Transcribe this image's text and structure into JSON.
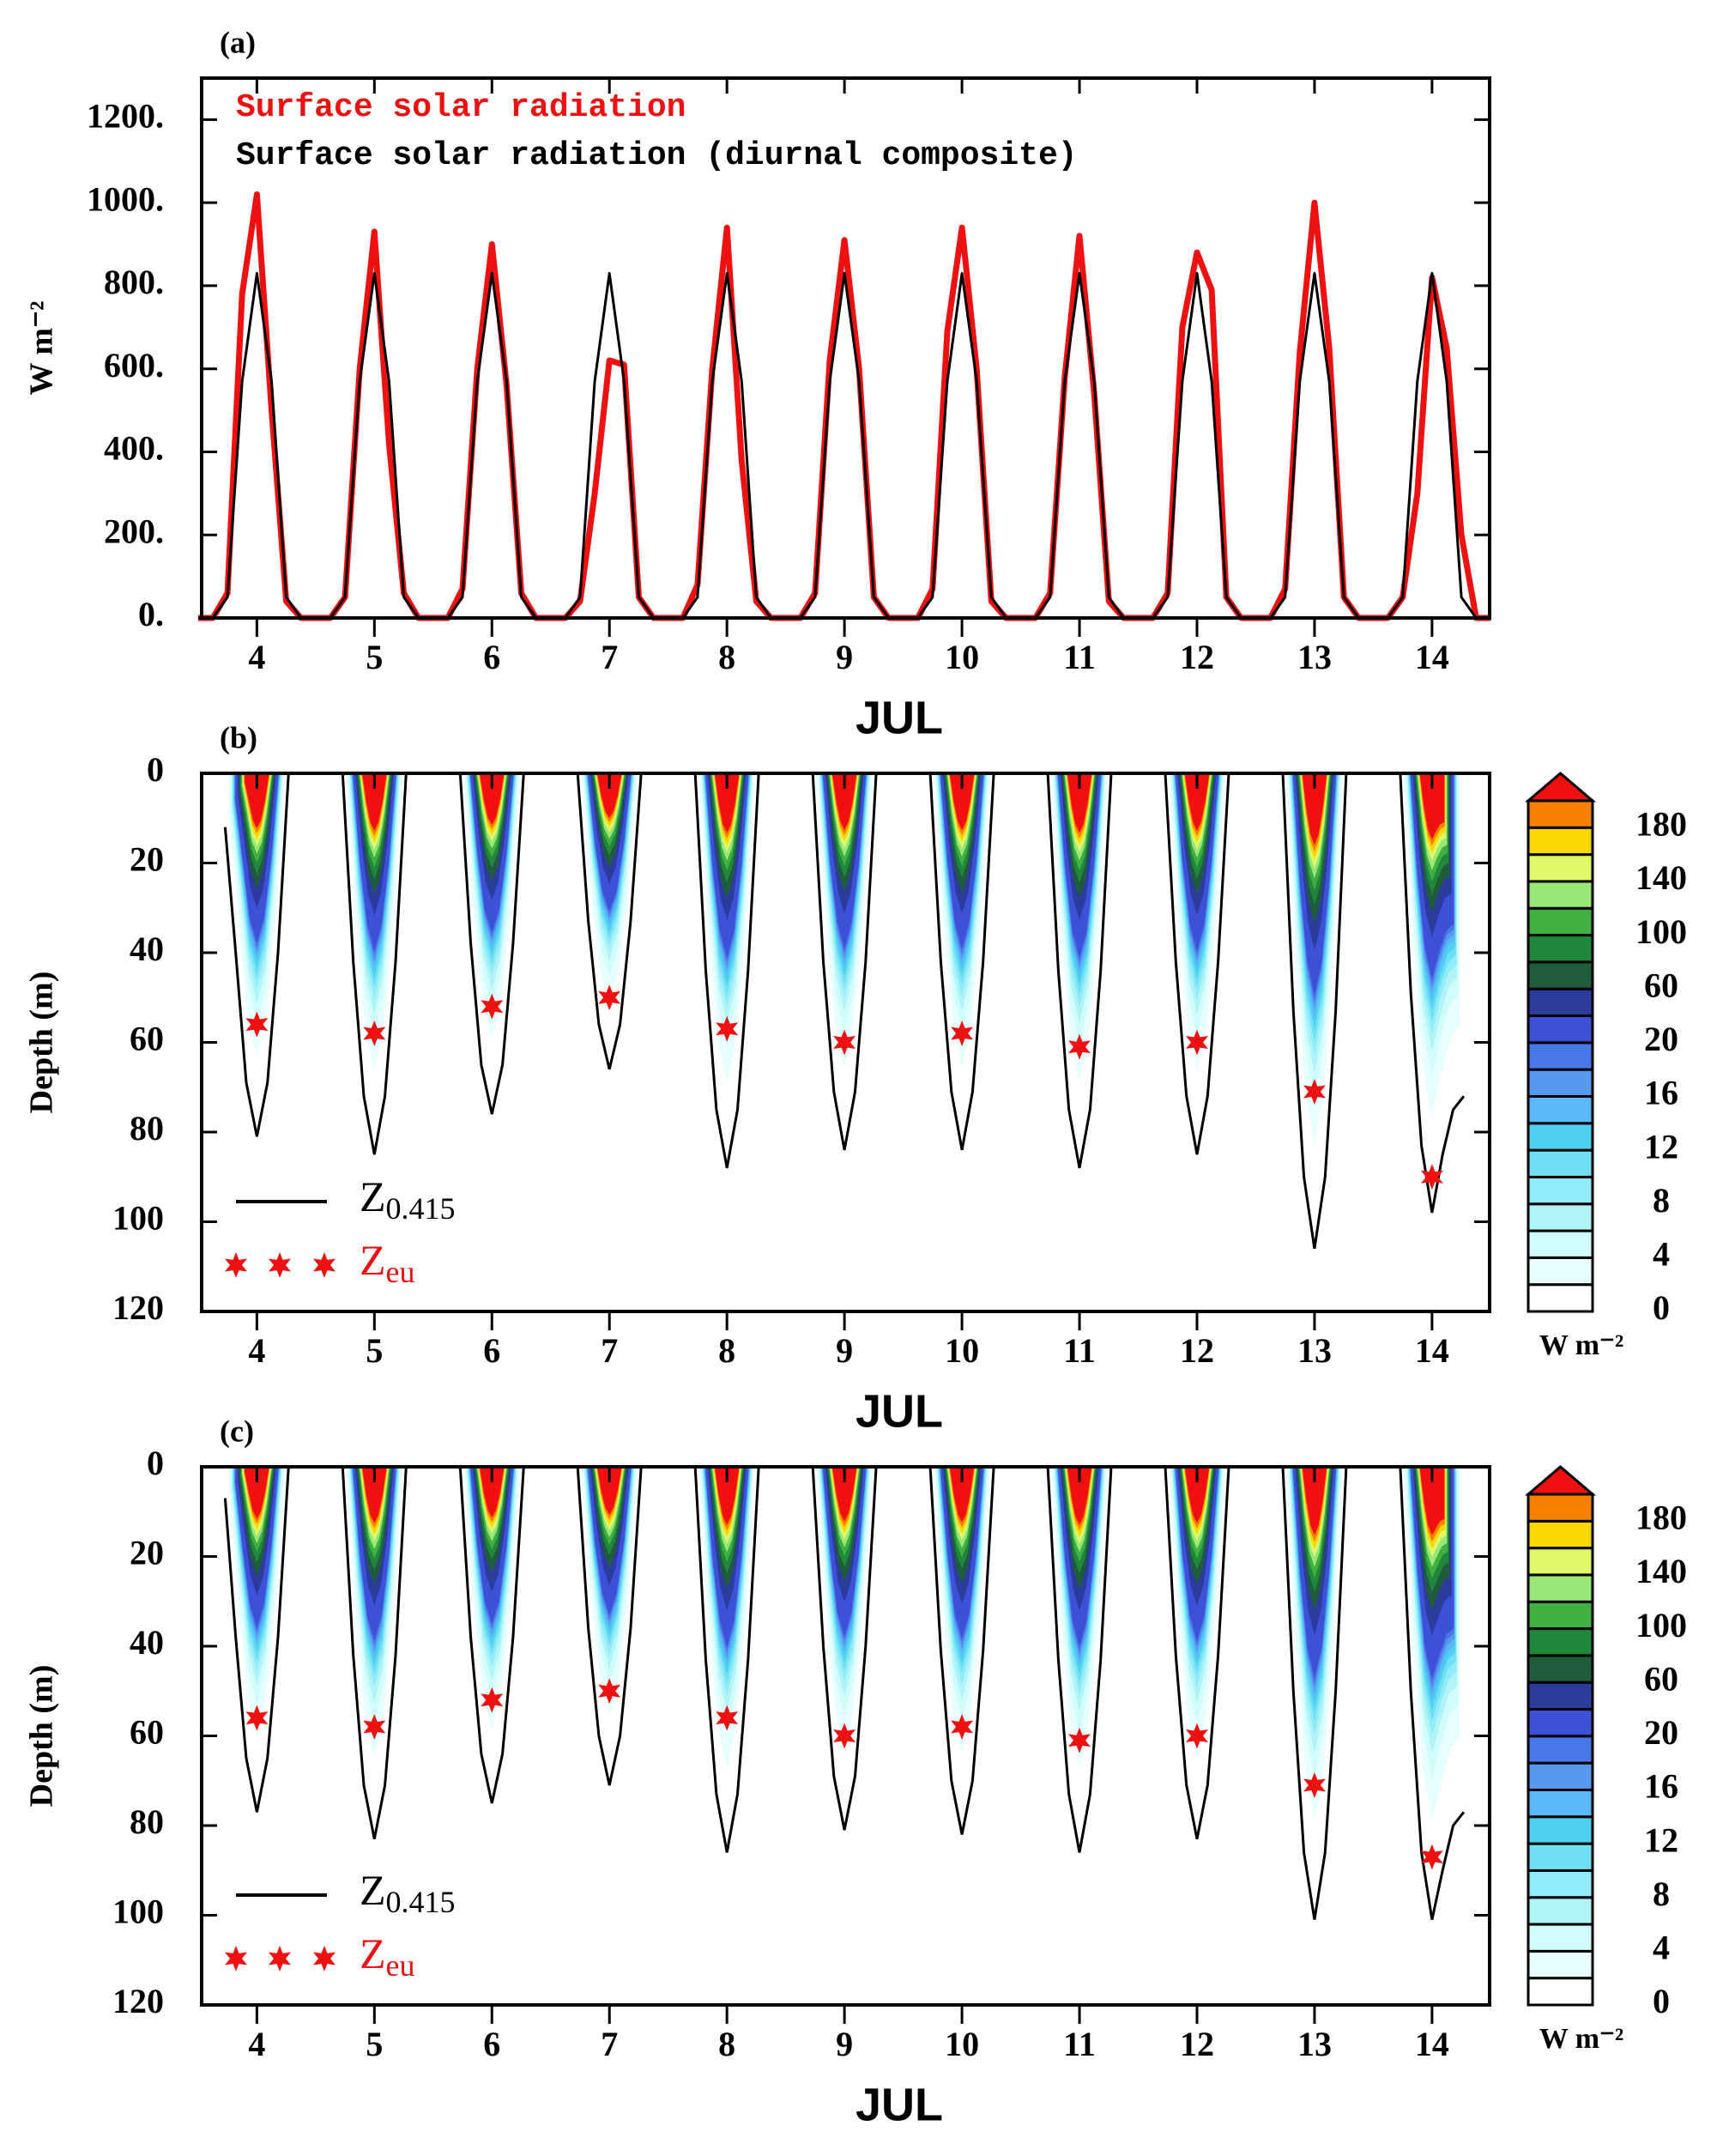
{
  "chart_data": [
    {
      "type": "line",
      "label": "(a)",
      "y_label": "W m⁻²",
      "x_label": "JUL",
      "xlim": [
        3.53,
        14.49
      ],
      "xticks": [
        4,
        5,
        6,
        7,
        8,
        9,
        10,
        11,
        12,
        13,
        14
      ],
      "ylim": [
        0,
        1300
      ],
      "yticks": [
        {
          "value": 0,
          "label": "0."
        },
        {
          "value": 200,
          "label": "200."
        },
        {
          "value": 400,
          "label": "400."
        },
        {
          "value": 600,
          "label": "600."
        },
        {
          "value": 800,
          "label": "800."
        },
        {
          "value": 1000,
          "label": "1000."
        },
        {
          "value": 1200,
          "label": "1200."
        }
      ],
      "x": [
        3.5,
        3.625,
        3.75,
        3.875,
        4,
        4.125,
        4.25,
        4.375,
        4.5,
        4.625,
        4.75,
        4.875,
        5,
        5.125,
        5.25,
        5.375,
        5.5,
        5.625,
        5.75,
        5.875,
        6,
        6.125,
        6.25,
        6.375,
        6.5,
        6.625,
        6.75,
        6.875,
        7,
        7.125,
        7.25,
        7.375,
        7.5,
        7.625,
        7.75,
        7.875,
        8,
        8.125,
        8.25,
        8.375,
        8.5,
        8.625,
        8.75,
        8.875,
        9,
        9.125,
        9.25,
        9.375,
        9.5,
        9.625,
        9.75,
        9.875,
        10,
        10.125,
        10.25,
        10.375,
        10.5,
        10.625,
        10.75,
        10.875,
        11,
        11.125,
        11.25,
        11.375,
        11.5,
        11.625,
        11.75,
        11.875,
        12,
        12.125,
        12.25,
        12.375,
        12.5,
        12.625,
        12.75,
        12.875,
        13,
        13.125,
        13.25,
        13.375,
        13.5,
        13.625,
        13.75,
        13.875,
        14,
        14.125,
        14.25,
        14.375,
        14.5
      ],
      "series": [
        {
          "name": "Surface solar radiation",
          "color": "#ee1111",
          "values": [
            0,
            0,
            60,
            780,
            1020,
            500,
            40,
            0,
            0,
            0,
            50,
            600,
            930,
            420,
            60,
            0,
            0,
            0,
            70,
            600,
            900,
            560,
            60,
            0,
            0,
            0,
            40,
            300,
            620,
            610,
            50,
            0,
            0,
            0,
            80,
            600,
            940,
            380,
            40,
            0,
            0,
            0,
            60,
            620,
            910,
            600,
            50,
            0,
            0,
            0,
            70,
            690,
            940,
            600,
            40,
            0,
            0,
            0,
            60,
            580,
            920,
            540,
            40,
            0,
            0,
            0,
            60,
            700,
            880,
            790,
            50,
            0,
            0,
            0,
            70,
            640,
            1000,
            650,
            50,
            0,
            0,
            0,
            50,
            300,
            820,
            650,
            200,
            0,
            0
          ]
        },
        {
          "name": "Surface solar radiation (diurnal composite)",
          "color": "#000000",
          "values": [
            0,
            0,
            50,
            570,
            830,
            570,
            50,
            0,
            0,
            0,
            50,
            570,
            830,
            570,
            50,
            0,
            0,
            0,
            50,
            570,
            830,
            570,
            50,
            0,
            0,
            0,
            50,
            570,
            830,
            570,
            50,
            0,
            0,
            0,
            50,
            570,
            830,
            570,
            50,
            0,
            0,
            0,
            50,
            570,
            830,
            570,
            50,
            0,
            0,
            0,
            50,
            570,
            830,
            570,
            50,
            0,
            0,
            0,
            50,
            570,
            830,
            570,
            50,
            0,
            0,
            0,
            50,
            570,
            830,
            570,
            50,
            0,
            0,
            0,
            50,
            570,
            830,
            570,
            50,
            0,
            0,
            0,
            50,
            570,
            830,
            570,
            50,
            0,
            0
          ]
        }
      ]
    },
    {
      "type": "contour",
      "label": "(b)",
      "y_label": "Depth (m)",
      "x_label": "JUL",
      "xlim": [
        3.53,
        14.49
      ],
      "xticks": [
        4,
        5,
        6,
        7,
        8,
        9,
        10,
        11,
        12,
        13,
        14
      ],
      "ylim": [
        0,
        120
      ],
      "yreverse": true,
      "yticks": [
        0,
        20,
        40,
        60,
        80,
        100,
        120
      ],
      "line": {
        "name": "Z",
        "subscript": "0.415",
        "color": "#000000",
        "x": [
          3.73,
          3.82,
          3.91,
          4,
          4.09,
          4.18,
          4.27,
          4.4,
          4.73,
          4.82,
          4.91,
          5,
          5.09,
          5.18,
          5.27,
          5.4,
          5.73,
          5.82,
          5.91,
          6,
          6.09,
          6.18,
          6.27,
          6.4,
          6.73,
          6.82,
          6.91,
          7,
          7.09,
          7.18,
          7.27,
          7.4,
          7.73,
          7.82,
          7.91,
          8,
          8.09,
          8.18,
          8.27,
          8.4,
          8.73,
          8.82,
          8.91,
          9,
          9.09,
          9.18,
          9.27,
          9.4,
          9.73,
          9.82,
          9.91,
          10,
          10.09,
          10.18,
          10.27,
          10.4,
          10.73,
          10.82,
          10.91,
          11,
          11.09,
          11.18,
          11.27,
          11.4,
          11.73,
          11.82,
          11.91,
          12,
          12.09,
          12.18,
          12.27,
          12.4,
          12.73,
          12.82,
          12.91,
          13,
          13.09,
          13.18,
          13.27,
          13.4,
          13.73,
          13.82,
          13.91,
          14,
          14.09,
          14.18,
          14.27
        ],
        "values": [
          12,
          40,
          69,
          81,
          69,
          40,
          0,
          null,
          0,
          42,
          72,
          85,
          72,
          42,
          0,
          null,
          0,
          38,
          65,
          76,
          65,
          38,
          0,
          null,
          0,
          33,
          56,
          66,
          56,
          33,
          0,
          null,
          0,
          44,
          75,
          88,
          75,
          44,
          0,
          null,
          0,
          42,
          71,
          84,
          71,
          42,
          0,
          null,
          0,
          42,
          71,
          84,
          71,
          42,
          0,
          null,
          0,
          44,
          75,
          88,
          75,
          44,
          0,
          null,
          0,
          42,
          72,
          85,
          72,
          42,
          0,
          null,
          0,
          53,
          90,
          106,
          90,
          53,
          0,
          null,
          0,
          49,
          83,
          98,
          85,
          75,
          72
        ]
      },
      "stars": {
        "name": "Z",
        "subscript": "eu",
        "color": "#ee1111",
        "x": [
          4,
          5,
          6,
          7,
          8,
          9,
          10,
          11,
          12,
          13,
          14
        ],
        "values": [
          56,
          58,
          52,
          50,
          57,
          60,
          58,
          61,
          60,
          71,
          90
        ]
      },
      "colorbar": {
        "units": "W m⁻²",
        "levels": [
          0,
          2,
          4,
          6,
          8,
          10,
          12,
          14,
          16,
          18,
          20,
          40,
          60,
          80,
          100,
          120,
          140,
          160,
          180,
          200
        ],
        "colors": [
          "#ffffff",
          "#e8ffff",
          "#d0fcfc",
          "#b0f4f8",
          "#90ecf8",
          "#70e0f4",
          "#50d0f0",
          "#58b8f8",
          "#5898f0",
          "#4878e8",
          "#3c50d8",
          "#2c3c9c",
          "#1e5c3c",
          "#20883a",
          "#40b040",
          "#98e878",
          "#e0f868",
          "#f8d800",
          "#f88000"
        ],
        "over_color": "#f01010",
        "ticks": [
          0,
          4,
          8,
          12,
          16,
          20,
          60,
          100,
          140,
          180
        ]
      }
    },
    {
      "type": "contour",
      "label": "(c)",
      "y_label": "Depth (m)",
      "x_label": "JUL",
      "xlim": [
        3.53,
        14.49
      ],
      "xticks": [
        4,
        5,
        6,
        7,
        8,
        9,
        10,
        11,
        12,
        13,
        14
      ],
      "ylim": [
        0,
        120
      ],
      "yreverse": true,
      "yticks": [
        0,
        20,
        40,
        60,
        80,
        100,
        120
      ],
      "line": {
        "name": "Z",
        "subscript": "0.415",
        "color": "#000000",
        "x": [
          3.73,
          3.82,
          3.91,
          4,
          4.09,
          4.18,
          4.27,
          4.4,
          4.73,
          4.82,
          4.91,
          5,
          5.09,
          5.18,
          5.27,
          5.4,
          5.73,
          5.82,
          5.91,
          6,
          6.09,
          6.18,
          6.27,
          6.4,
          6.73,
          6.82,
          6.91,
          7,
          7.09,
          7.18,
          7.27,
          7.4,
          7.73,
          7.82,
          7.91,
          8,
          8.09,
          8.18,
          8.27,
          8.4,
          8.73,
          8.82,
          8.91,
          9,
          9.09,
          9.18,
          9.27,
          9.4,
          9.73,
          9.82,
          9.91,
          10,
          10.09,
          10.18,
          10.27,
          10.4,
          10.73,
          10.82,
          10.91,
          11,
          11.09,
          11.18,
          11.27,
          11.4,
          11.73,
          11.82,
          11.91,
          12,
          12.09,
          12.18,
          12.27,
          12.4,
          12.73,
          12.82,
          12.91,
          13,
          13.09,
          13.18,
          13.27,
          13.4,
          13.73,
          13.82,
          13.91,
          14,
          14.09,
          14.18,
          14.27
        ],
        "values": [
          7,
          38,
          65,
          77,
          65,
          38,
          0,
          null,
          0,
          42,
          71,
          83,
          71,
          42,
          0,
          null,
          0,
          38,
          64,
          75,
          64,
          38,
          0,
          null,
          0,
          36,
          60,
          71,
          60,
          36,
          0,
          null,
          0,
          43,
          73,
          86,
          73,
          43,
          0,
          null,
          0,
          40,
          69,
          81,
          69,
          40,
          0,
          null,
          0,
          41,
          70,
          82,
          70,
          41,
          0,
          null,
          0,
          43,
          73,
          86,
          73,
          43,
          0,
          null,
          0,
          42,
          71,
          83,
          71,
          42,
          0,
          null,
          0,
          50,
          86,
          101,
          86,
          50,
          0,
          null,
          0,
          50,
          86,
          101,
          90,
          80,
          77
        ]
      },
      "stars": {
        "name": "Z",
        "subscript": "eu",
        "color": "#ee1111",
        "x": [
          4,
          5,
          6,
          7,
          8,
          9,
          10,
          11,
          12,
          13,
          14
        ],
        "values": [
          56,
          58,
          52,
          50,
          56,
          60,
          58,
          61,
          60,
          71,
          87
        ]
      },
      "colorbar": {
        "units": "W m⁻²",
        "levels": [
          0,
          2,
          4,
          6,
          8,
          10,
          12,
          14,
          16,
          18,
          20,
          40,
          60,
          80,
          100,
          120,
          140,
          160,
          180,
          200
        ],
        "colors": [
          "#ffffff",
          "#e8ffff",
          "#d0fcfc",
          "#b0f4f8",
          "#90ecf8",
          "#70e0f4",
          "#50d0f0",
          "#58b8f8",
          "#5898f0",
          "#4878e8",
          "#3c50d8",
          "#2c3c9c",
          "#1e5c3c",
          "#20883a",
          "#40b040",
          "#98e878",
          "#e0f868",
          "#f8d800",
          "#f88000"
        ],
        "over_color": "#f01010",
        "ticks": [
          0,
          4,
          8,
          12,
          16,
          20,
          60,
          100,
          140,
          180
        ]
      }
    }
  ]
}
